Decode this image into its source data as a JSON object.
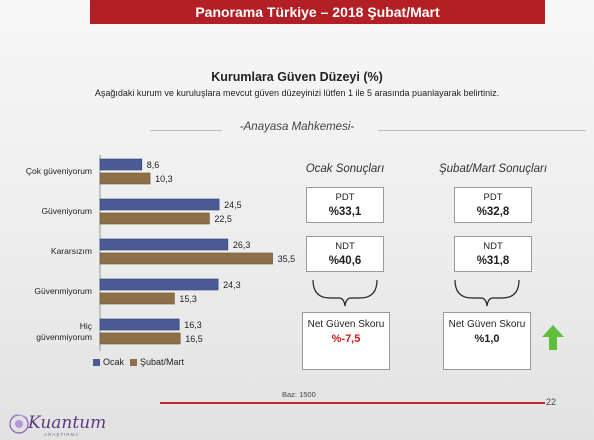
{
  "header": {
    "title": "Panorama Türkiye – 2018 Şubat/Mart"
  },
  "chart_data": {
    "type": "bar",
    "title": "Kurumlara Güven Düzeyi (%)",
    "subtitle": "Aşağıdaki kurum ve kuruluşlara mevcut güven düzeyinizi lütfen 1 ile 5 arasında puanlayarak belirtiniz.",
    "section": "-Anayasa Mahkemesi-",
    "orientation": "horizontal",
    "categories": [
      "Çok güveniyorum",
      "Güveniyorum",
      "Kararsızım",
      "Güvenmiyorum",
      "Hiç güvenmiyorum"
    ],
    "category_lines": [
      [
        "Çok güveniyorum"
      ],
      [
        "Güveniyorum"
      ],
      [
        "Kararsızım"
      ],
      [
        "Güvenmiyorum"
      ],
      [
        "Hiç",
        "güvenmiyorum"
      ]
    ],
    "series": [
      {
        "name": "Ocak",
        "values": [
          8.6,
          24.5,
          26.3,
          24.3,
          16.3
        ],
        "color": "#4a5b96"
      },
      {
        "name": "Şubat/Mart",
        "values": [
          10.3,
          22.5,
          35.5,
          15.3,
          16.5
        ],
        "color": "#8e7048"
      }
    ],
    "value_labels": [
      [
        "8,6",
        "24,5",
        "26,3",
        "24,3",
        "16,3"
      ],
      [
        "10,3",
        "22,5",
        "35,5",
        "15,3",
        "16,5"
      ]
    ],
    "xlim": [
      0,
      36
    ],
    "legend": "bottom"
  },
  "panels": {
    "ocak": {
      "title": "Ocak Sonuçları",
      "pdt_label": "PDT",
      "pdt_value": "%33,1",
      "ndt_label": "NDT",
      "ndt_value": "%40,6",
      "net_label": "Net Güven Skoru",
      "net_value": "%-7,5"
    },
    "subat": {
      "title": "Şubat/Mart Sonuçları",
      "pdt_label": "PDT",
      "pdt_value": "%32,8",
      "ndt_label": "NDT",
      "ndt_value": "%31,8",
      "net_label": "Net Güven Skoru",
      "net_value": "%1,0"
    },
    "trend_icon": "up-arrow-icon",
    "trend_color": "#5fbf3a"
  },
  "footer": {
    "base": "Baz: 1500",
    "page_number": "22",
    "logo_text": "Kuantum",
    "logo_sub": "ARAŞTIRMA"
  }
}
